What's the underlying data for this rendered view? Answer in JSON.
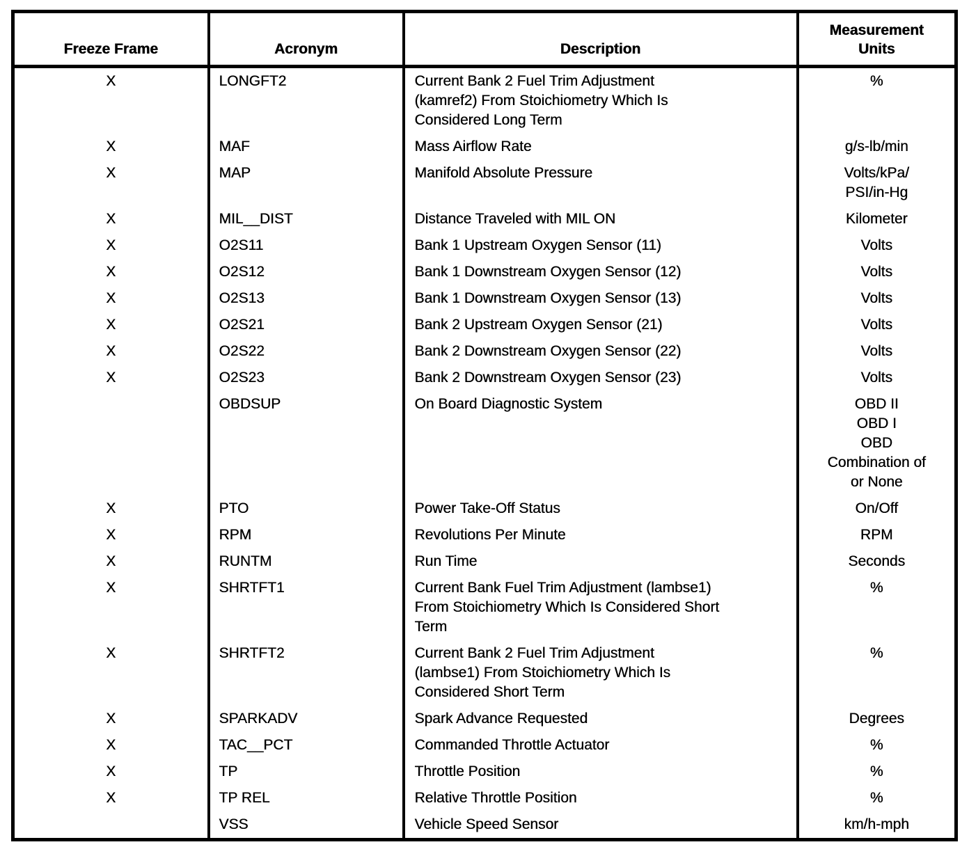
{
  "table": {
    "headers": [
      "Freeze Frame",
      "Acronym",
      "Description",
      "Measurement\nUnits"
    ],
    "rows": [
      {
        "freeze_frame": "X",
        "acronym": "LONGFT2",
        "description": "Current Bank 2 Fuel Trim Adjustment\n(kamref2) From Stoichiometry Which Is\nConsidered Long Term",
        "units": "%"
      },
      {
        "freeze_frame": "X",
        "acronym": "MAF",
        "description": "Mass Airflow Rate",
        "units": "g/s-lb/min"
      },
      {
        "freeze_frame": "X",
        "acronym": "MAP",
        "description": "Manifold Absolute Pressure",
        "units": "Volts/kPa/\nPSI/in-Hg"
      },
      {
        "freeze_frame": "X",
        "acronym": "MIL__DIST",
        "description": "Distance Traveled with MIL ON",
        "units": "Kilometer"
      },
      {
        "freeze_frame": "X",
        "acronym": "O2S11",
        "description": "Bank 1 Upstream Oxygen Sensor (11)",
        "units": "Volts"
      },
      {
        "freeze_frame": "X",
        "acronym": "O2S12",
        "description": "Bank 1 Downstream Oxygen Sensor (12)",
        "units": "Volts"
      },
      {
        "freeze_frame": "X",
        "acronym": "O2S13",
        "description": "Bank 1 Downstream Oxygen Sensor (13)",
        "units": "Volts"
      },
      {
        "freeze_frame": "X",
        "acronym": "O2S21",
        "description": "Bank 2 Upstream Oxygen Sensor (21)",
        "units": "Volts"
      },
      {
        "freeze_frame": "X",
        "acronym": "O2S22",
        "description": "Bank 2 Downstream Oxygen Sensor (22)",
        "units": "Volts"
      },
      {
        "freeze_frame": "X",
        "acronym": "O2S23",
        "description": "Bank 2 Downstream Oxygen Sensor (23)",
        "units": "Volts"
      },
      {
        "freeze_frame": "",
        "acronym": "OBDSUP",
        "description": "On Board Diagnostic System",
        "units": "OBD II\nOBD I\nOBD\nCombination of\nor None"
      },
      {
        "freeze_frame": "X",
        "acronym": "PTO",
        "description": "Power Take-Off Status",
        "units": "On/Off"
      },
      {
        "freeze_frame": "X",
        "acronym": "RPM",
        "description": "Revolutions Per Minute",
        "units": "RPM"
      },
      {
        "freeze_frame": "X",
        "acronym": "RUNTM",
        "description": "Run Time",
        "units": "Seconds"
      },
      {
        "freeze_frame": "X",
        "acronym": "SHRTFT1",
        "description": "Current Bank Fuel Trim Adjustment (lambse1)\nFrom Stoichiometry Which Is Considered Short\nTerm",
        "units": "%"
      },
      {
        "freeze_frame": "X",
        "acronym": "SHRTFT2",
        "description": "Current Bank 2 Fuel Trim Adjustment\n(lambse1) From Stoichiometry Which Is\nConsidered Short Term",
        "units": "%"
      },
      {
        "freeze_frame": "X",
        "acronym": "SPARKADV",
        "description": "Spark Advance Requested",
        "units": "Degrees"
      },
      {
        "freeze_frame": "X",
        "acronym": "TAC__PCT",
        "description": "Commanded Throttle Actuator",
        "units": "%"
      },
      {
        "freeze_frame": "X",
        "acronym": "TP",
        "description": "Throttle Position",
        "units": "%"
      },
      {
        "freeze_frame": "X",
        "acronym": "TP REL",
        "description": "Relative Throttle Position",
        "units": "%"
      },
      {
        "freeze_frame": "",
        "acronym": "VSS",
        "description": "Vehicle Speed Sensor",
        "units": "km/h-mph"
      }
    ]
  }
}
